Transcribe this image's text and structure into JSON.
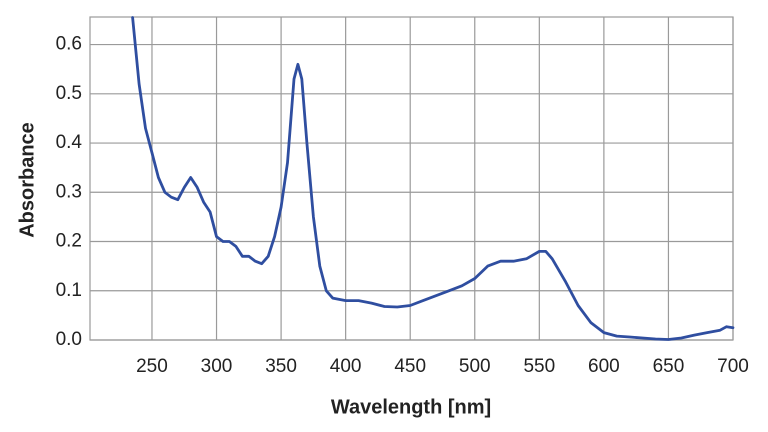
{
  "chart_data": {
    "type": "line",
    "x_label": "Wavelength [nm]",
    "y_label": "Absorbance",
    "x": [
      235,
      240,
      245,
      250,
      255,
      260,
      265,
      270,
      275,
      280,
      285,
      290,
      295,
      300,
      305,
      310,
      315,
      320,
      325,
      330,
      335,
      340,
      345,
      350,
      355,
      360,
      363,
      366,
      370,
      375,
      380,
      385,
      390,
      400,
      410,
      420,
      430,
      440,
      450,
      460,
      470,
      480,
      490,
      500,
      510,
      520,
      530,
      540,
      550,
      555,
      560,
      570,
      580,
      590,
      600,
      610,
      620,
      630,
      640,
      650,
      660,
      670,
      680,
      690,
      695,
      700
    ],
    "series": [
      {
        "color": "#2f4ea0",
        "values": [
          0.655,
          0.52,
          0.43,
          0.38,
          0.33,
          0.3,
          0.29,
          0.285,
          0.31,
          0.33,
          0.31,
          0.28,
          0.26,
          0.21,
          0.2,
          0.2,
          0.19,
          0.17,
          0.17,
          0.16,
          0.155,
          0.17,
          0.21,
          0.27,
          0.36,
          0.53,
          0.56,
          0.53,
          0.4,
          0.25,
          0.15,
          0.1,
          0.085,
          0.08,
          0.08,
          0.075,
          0.068,
          0.067,
          0.07,
          0.08,
          0.09,
          0.1,
          0.11,
          0.125,
          0.15,
          0.16,
          0.16,
          0.165,
          0.18,
          0.18,
          0.165,
          0.12,
          0.07,
          0.035,
          0.015,
          0.008,
          0.006,
          0.004,
          0.002,
          0.001,
          0.004,
          0.01,
          0.015,
          0.02,
          0.027,
          0.025
        ]
      }
    ],
    "xlim": [
      202,
      700
    ],
    "ylim": [
      0,
      0.656
    ],
    "xticks": [
      250,
      300,
      350,
      400,
      450,
      500,
      550,
      600,
      650,
      700
    ],
    "yticks": [
      {
        "value": 0,
        "label": "0.0"
      },
      0.1,
      0.2,
      0.3,
      0.4,
      0.5,
      0.6
    ],
    "grid": true
  }
}
